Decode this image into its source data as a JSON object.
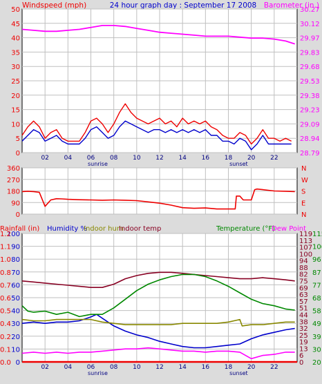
{
  "header": {
    "left": "Windspeed (mph)",
    "center": "24 hour graph day : September 17 2008",
    "right": "Barometer (in.)"
  },
  "colors": {
    "wind_avg": "#0000cc",
    "wind_gust": "#ee0000",
    "barometer": "#ff00ff",
    "wind_dir": "#ee0000",
    "rain": "#ee0000",
    "humidity": "#0000cc",
    "indoor_hum": "#888800",
    "indoor_temp": "#880022",
    "temperature": "#008800",
    "dew_point": "#ff00ff",
    "grid": "#bfbfbf",
    "plot_bg": "#ffffff",
    "page_bg": "#dcdcdc"
  },
  "chart_data": [
    {
      "type": "line",
      "panel": "wind-barometer",
      "x_ticks": [
        "02",
        "04",
        "06",
        "08",
        "10",
        "12",
        "14",
        "16",
        "18",
        "20",
        "22"
      ],
      "x_sublabels": {
        "sunrise": "sunrise",
        "sunset": "sunset"
      },
      "xlim": [
        0,
        24
      ],
      "y_left": {
        "label": "Windspeed (mph)",
        "ticks": [
          0,
          5,
          10,
          15,
          20,
          25,
          30,
          35,
          40,
          45,
          50
        ],
        "lim": [
          0,
          50
        ]
      },
      "y_right": {
        "label": "Barometer (in.)",
        "ticks": [
          "28.79",
          "28.94",
          "29.09",
          "29.23",
          "29.38",
          "29.53",
          "29.68",
          "29.83",
          "29.97",
          "30.12",
          "30.27"
        ],
        "lim": [
          28.79,
          30.27
        ]
      },
      "series": [
        {
          "key": "gust",
          "axis": "left",
          "x": [
            0,
            0.5,
            1,
            1.5,
            2,
            2.5,
            3,
            3.5,
            4,
            4.5,
            5,
            5.5,
            6,
            6.5,
            7,
            7.5,
            8,
            8.5,
            9,
            9.5,
            10,
            10.5,
            11,
            11.5,
            12,
            12.5,
            13,
            13.5,
            14,
            14.5,
            15,
            15.5,
            16,
            16.5,
            17,
            17.5,
            18,
            18.5,
            19,
            19.5,
            20,
            20.5,
            21,
            21.5,
            22,
            22.5,
            23,
            23.5
          ],
          "values": [
            6,
            9,
            11,
            9,
            5,
            7,
            8,
            5,
            4,
            4,
            4,
            7,
            11,
            12,
            10,
            7,
            10,
            14,
            17,
            14,
            12,
            11,
            10,
            11,
            12,
            10,
            11,
            9,
            12,
            10,
            11,
            10,
            11,
            9,
            8,
            6,
            5,
            5,
            7,
            6,
            3,
            5,
            8,
            5,
            5,
            4,
            5,
            4
          ]
        },
        {
          "key": "avg",
          "axis": "left",
          "x": [
            0,
            0.5,
            1,
            1.5,
            2,
            2.5,
            3,
            3.5,
            4,
            4.5,
            5,
            5.5,
            6,
            6.5,
            7,
            7.5,
            8,
            8.5,
            9,
            9.5,
            10,
            10.5,
            11,
            11.5,
            12,
            12.5,
            13,
            13.5,
            14,
            14.5,
            15,
            15.5,
            16,
            16.5,
            17,
            17.5,
            18,
            18.5,
            19,
            19.5,
            20,
            20.5,
            21,
            21.5,
            22,
            22.5,
            23,
            23.5
          ],
          "values": [
            4,
            6,
            8,
            7,
            4,
            5,
            6,
            4,
            3,
            3,
            3,
            5,
            8,
            9,
            7,
            5,
            6,
            9,
            11,
            10,
            9,
            8,
            7,
            8,
            8,
            7,
            8,
            7,
            8,
            7,
            8,
            7,
            8,
            6,
            6,
            4,
            4,
            3,
            5,
            4,
            1,
            3,
            6,
            3,
            3,
            3,
            3,
            3
          ]
        },
        {
          "key": "barometer",
          "axis": "right",
          "x": [
            0,
            1,
            2,
            3,
            4,
            5,
            6,
            7,
            8,
            9,
            10,
            11,
            12,
            13,
            14,
            15,
            16,
            17,
            18,
            19,
            20,
            21,
            22,
            23,
            23.8
          ],
          "values": [
            30.06,
            30.05,
            30.04,
            30.04,
            30.05,
            30.06,
            30.08,
            30.1,
            30.1,
            30.09,
            30.07,
            30.05,
            30.03,
            30.02,
            30.01,
            30.0,
            29.99,
            29.99,
            29.99,
            29.98,
            29.97,
            29.97,
            29.96,
            29.94,
            29.91
          ]
        }
      ]
    },
    {
      "type": "line",
      "panel": "wind-direction",
      "y_left": {
        "ticks": [
          0,
          90,
          180,
          270,
          360
        ],
        "lim": [
          0,
          360
        ]
      },
      "y_right": {
        "labels": [
          "N",
          "W",
          "S",
          "E",
          "N"
        ]
      },
      "xlim": [
        0,
        24
      ],
      "series": [
        {
          "key": "direction",
          "x": [
            0,
            0.5,
            1,
            1.5,
            2,
            2.5,
            3,
            3.5,
            4,
            5,
            6,
            7,
            8,
            9,
            10,
            11,
            12,
            13,
            14,
            15,
            16,
            17,
            18,
            18.6,
            18.7,
            19,
            19.2,
            19.3,
            20,
            20.3,
            20.5,
            21,
            22,
            23,
            23.8
          ],
          "values": [
            175,
            178,
            175,
            170,
            60,
            110,
            120,
            118,
            115,
            112,
            110,
            108,
            110,
            108,
            105,
            95,
            85,
            70,
            50,
            45,
            48,
            40,
            40,
            40,
            140,
            140,
            120,
            110,
            110,
            190,
            195,
            190,
            180,
            178,
            175
          ]
        }
      ]
    },
    {
      "type": "line",
      "panel": "temp-humidity-rain",
      "header": [
        "Rainfall (in)",
        "Humidity %",
        "Indoor hum",
        "Indoor temp",
        "Temperature (°F)",
        "Dew Point"
      ],
      "y_rain": {
        "ticks": [
          "0.0",
          "0.1",
          "0.2",
          "0.4",
          "0.5",
          "0.6",
          "0.7",
          "0.8",
          "1.0",
          "1.1",
          "1.2"
        ],
        "lim": [
          0,
          1.2
        ]
      },
      "y_humidity": {
        "ticks": [
          0,
          10,
          20,
          30,
          40,
          50,
          60,
          70,
          80,
          90,
          100
        ],
        "lim": [
          0,
          100
        ]
      },
      "y_temp_c": {
        "ticks": [
          0,
          6,
          13,
          19,
          25,
          32,
          38,
          44,
          51,
          57,
          63,
          69,
          75,
          82,
          88,
          94,
          100,
          107,
          113,
          119
        ],
        "lim": [
          0,
          119
        ]
      },
      "y_temp_f": {
        "ticks": [
          20,
          30,
          39,
          49,
          58,
          68,
          77,
          87,
          96,
          106,
          115
        ],
        "lim": [
          20,
          115
        ]
      },
      "xlim": [
        0,
        24
      ],
      "series": [
        {
          "key": "rain",
          "axis": "rain",
          "x": [
            0,
            24
          ],
          "values": [
            0,
            0
          ]
        },
        {
          "key": "humidity",
          "axis": "humidity",
          "x": [
            0,
            1,
            2,
            3,
            4,
            5,
            6,
            6.5,
            7,
            8,
            9,
            10,
            11,
            12,
            13,
            14,
            15,
            16,
            17,
            18,
            19,
            20,
            21,
            22,
            23,
            23.8
          ],
          "values": [
            30,
            31,
            30,
            31,
            31,
            32,
            35,
            37,
            34,
            28,
            24,
            21,
            19,
            16,
            14,
            12,
            11,
            11,
            12,
            13,
            14,
            18,
            21,
            23,
            25,
            26
          ]
        },
        {
          "key": "indoor_hum",
          "axis": "humidity",
          "x": [
            0,
            1,
            2,
            3,
            4,
            5,
            6,
            7,
            8,
            9,
            10,
            11,
            12,
            13,
            14,
            15,
            16,
            17,
            18,
            19,
            19.2,
            20,
            21,
            22,
            23,
            23.8
          ],
          "values": [
            33,
            32,
            32,
            33,
            33,
            33,
            33,
            31,
            30,
            29,
            29,
            29,
            29,
            29,
            30,
            30,
            30,
            30,
            31,
            33,
            28,
            29,
            29,
            30,
            31,
            31
          ]
        },
        {
          "key": "indoor_temp",
          "axis": "temp_c",
          "x": [
            0,
            1,
            2,
            3,
            4,
            5,
            6,
            7,
            8,
            9,
            10,
            11,
            12,
            13,
            14,
            15,
            16,
            17,
            18,
            19,
            20,
            21,
            22,
            23,
            23.8
          ],
          "values": [
            75,
            74,
            73,
            72,
            71,
            70,
            69,
            69,
            72,
            77,
            80,
            82,
            83,
            83,
            82,
            81,
            80,
            79,
            78,
            77,
            77,
            78,
            77,
            76,
            75
          ]
        },
        {
          "key": "temperature",
          "axis": "temp_c",
          "x": [
            0,
            0.5,
            1,
            2,
            3,
            4,
            5,
            6,
            7,
            8,
            9,
            10,
            11,
            12,
            13,
            14,
            15,
            16,
            17,
            18,
            19,
            20,
            21,
            22,
            23,
            23.8
          ],
          "values": [
            52,
            47,
            46,
            47,
            44,
            46,
            42,
            44,
            44,
            50,
            58,
            66,
            72,
            76,
            79,
            81,
            81,
            79,
            75,
            70,
            64,
            58,
            54,
            52,
            49,
            48
          ]
        },
        {
          "key": "dew_point",
          "axis": "temp_c",
          "x": [
            0,
            1,
            2,
            3,
            4,
            5,
            6,
            7,
            8,
            9,
            10,
            11,
            12,
            13,
            14,
            15,
            16,
            17,
            18,
            19,
            20,
            21,
            22,
            23,
            23.8
          ],
          "values": [
            8,
            9,
            8,
            9,
            8,
            9,
            9,
            10,
            11,
            12,
            12,
            13,
            12,
            11,
            10,
            10,
            9,
            10,
            10,
            9,
            3,
            6,
            7,
            9,
            9
          ]
        }
      ]
    }
  ]
}
